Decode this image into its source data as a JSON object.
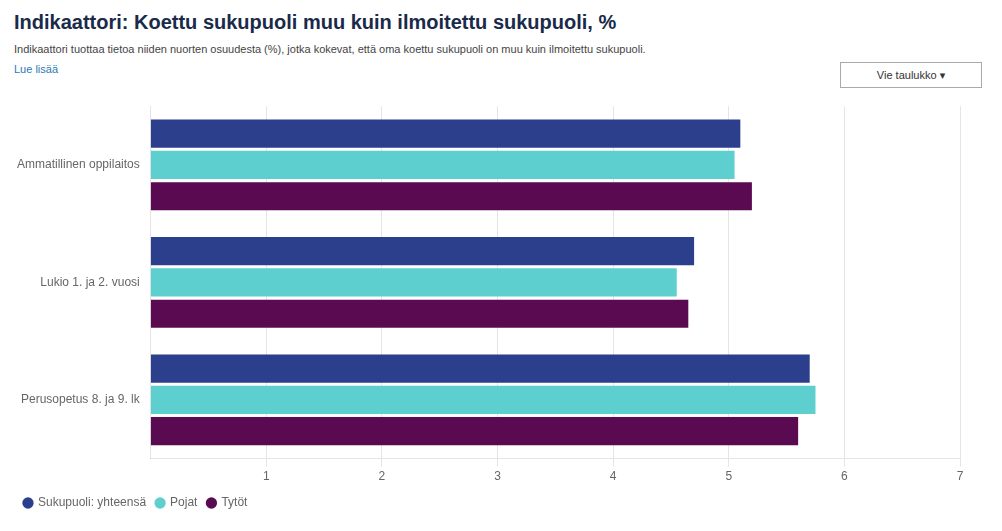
{
  "chart_data": {
    "type": "bar",
    "orientation": "horizontal",
    "title": "Indikaattori: Koettu sukupuoli muu kuin ilmoitettu sukupuoli, %",
    "subtitle": "Indikaattori tuottaa tietoa niiden nuorten osuudesta (%), jotka kokevat, että oma koettu sukupuoli on muu kuin ilmoitettu sukupuoli.",
    "annotations": [
      "Lue lisää",
      "Vie taulukko ▾"
    ],
    "categories": [
      "Ammatillinen oppilaitos",
      "Lukio 1. ja 2. vuosi",
      "Perusopetus 8. ja 9. lk"
    ],
    "series": [
      {
        "name": "Sukupuoli: yhteensä",
        "color": "#2b3f8c",
        "values": [
          5.1,
          4.7,
          5.7
        ]
      },
      {
        "name": "Pojat",
        "color": "#5ecfcf",
        "values": [
          5.05,
          4.55,
          5.75
        ]
      },
      {
        "name": "Tytöt",
        "color": "#5a0a50",
        "values": [
          5.2,
          4.65,
          5.6
        ]
      }
    ],
    "xlim": [
      0,
      7
    ],
    "xticks": [
      1,
      2,
      3,
      4,
      5,
      6,
      7
    ],
    "grid": true,
    "legend": "lower left"
  }
}
